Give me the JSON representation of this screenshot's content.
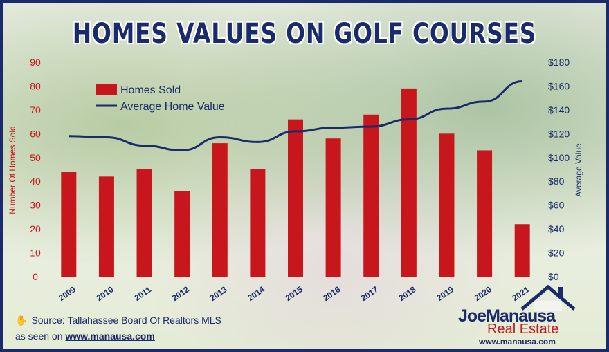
{
  "chart_data": {
    "type": "bar",
    "title": "HOMES VALUES ON GOLF COURSES",
    "categories": [
      "2009",
      "2010",
      "2011",
      "2012",
      "2013",
      "2014",
      "2015",
      "2016",
      "2017",
      "2018",
      "2019",
      "2020",
      "2021"
    ],
    "series": [
      {
        "name": "Homes Sold",
        "type": "bar",
        "axis": "left",
        "color": "#c8161d",
        "values": [
          44,
          42,
          45,
          36,
          56,
          45,
          66,
          58,
          68,
          79,
          60,
          53,
          22
        ]
      },
      {
        "name": "Average Home Value",
        "type": "line",
        "axis": "right",
        "color": "#1b2a6b",
        "values": [
          118,
          117,
          110,
          106,
          117,
          113,
          122,
          125,
          126,
          132,
          141,
          147,
          164
        ]
      }
    ],
    "ylabel": "Number Of Homes Sold",
    "ylabel_right": "Average Value",
    "ylim": [
      0,
      90
    ],
    "ylim_right": [
      0,
      180
    ],
    "yticks": [
      "0",
      "10",
      "20",
      "30",
      "40",
      "50",
      "60",
      "70",
      "80",
      "90"
    ],
    "yticks_right": [
      "$0",
      "$20",
      "$40",
      "$60",
      "$80",
      "$100",
      "$120",
      "$140",
      "$160",
      "$180"
    ],
    "legend_position": "top-left",
    "grid": false
  },
  "source": "Source: Tallahassee Board Of Realtors MLS",
  "seen_on_prefix": "as seen on",
  "seen_on_link": "www.manausa.com",
  "logo": {
    "name_first": "Joe",
    "name_last": "Manausa",
    "tagline": "Real Estate",
    "url": "www.manausa.com"
  },
  "colors": {
    "accent_navy": "#1b2a6b",
    "accent_red": "#c8161d"
  },
  "icons": [
    "hand-icon",
    "house-icon"
  ]
}
